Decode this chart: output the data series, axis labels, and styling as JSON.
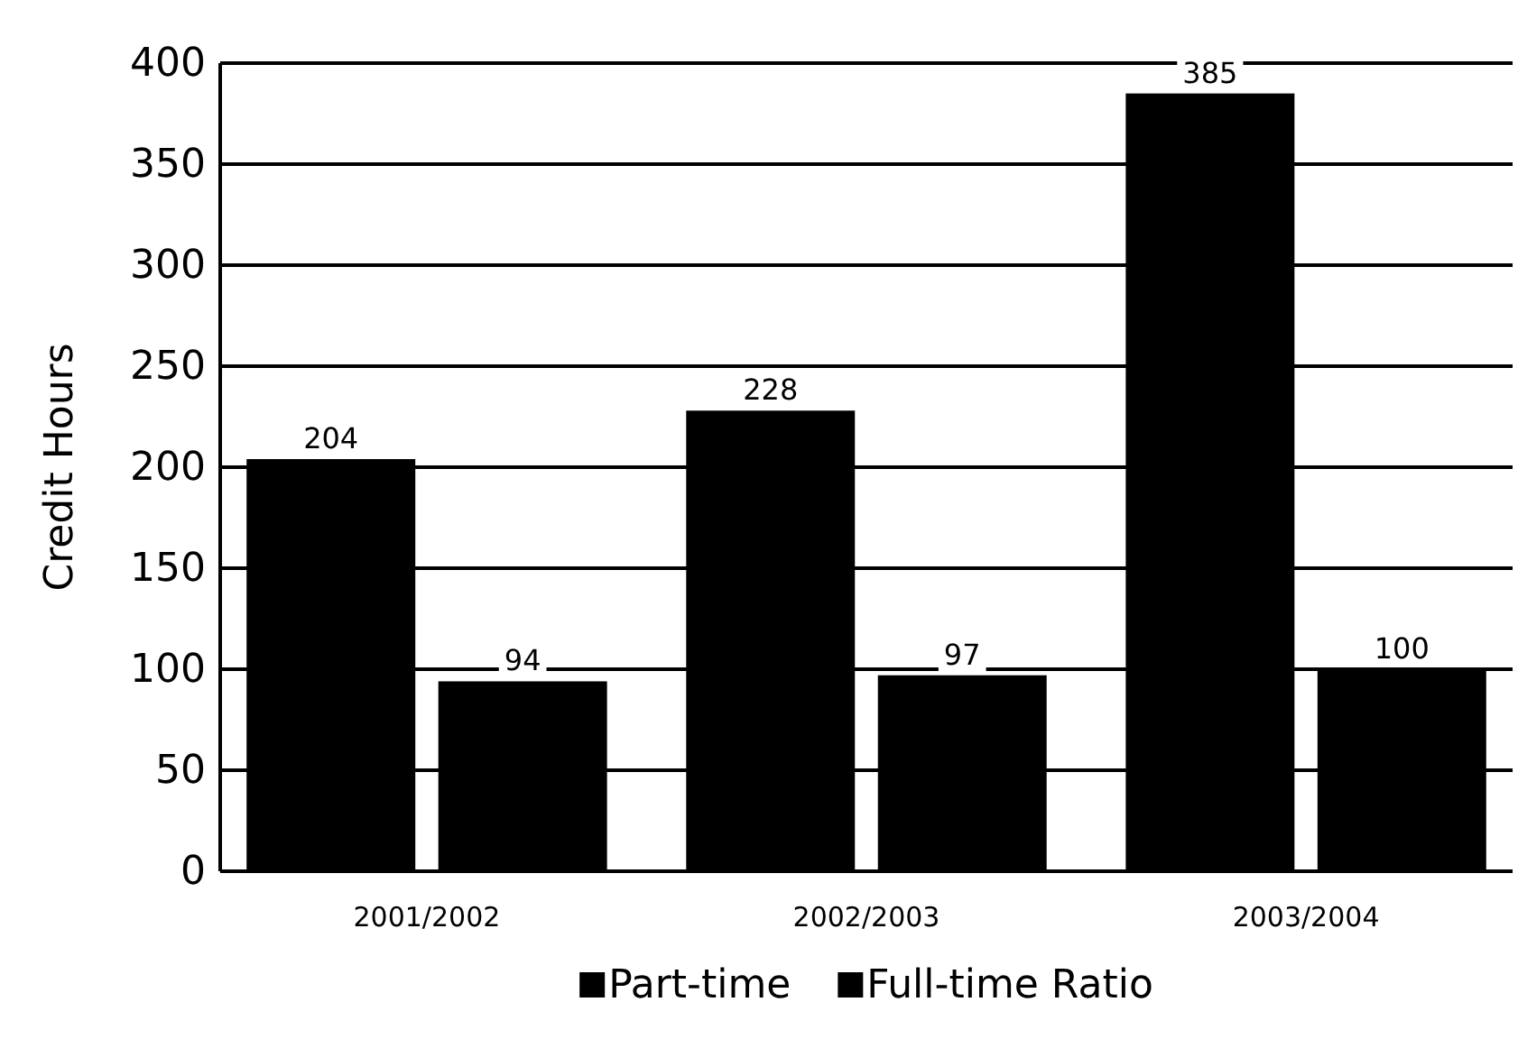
{
  "chart_data": {
    "type": "bar",
    "ylabel": "Credit Hours",
    "categories": [
      "2001/2002",
      "2002/2003",
      "2003/2004"
    ],
    "series": [
      {
        "name": "Part-time",
        "color": "#000000",
        "values": [
          204,
          228,
          385
        ]
      },
      {
        "name": "Full-time Ratio",
        "color": "#000000",
        "values": [
          94,
          97,
          100
        ]
      }
    ],
    "ylim": [
      0,
      400
    ],
    "yticks": [
      0,
      50,
      100,
      150,
      200,
      250,
      300,
      350,
      400
    ],
    "grid": "y",
    "legend": "bottom",
    "data_labels": true
  }
}
